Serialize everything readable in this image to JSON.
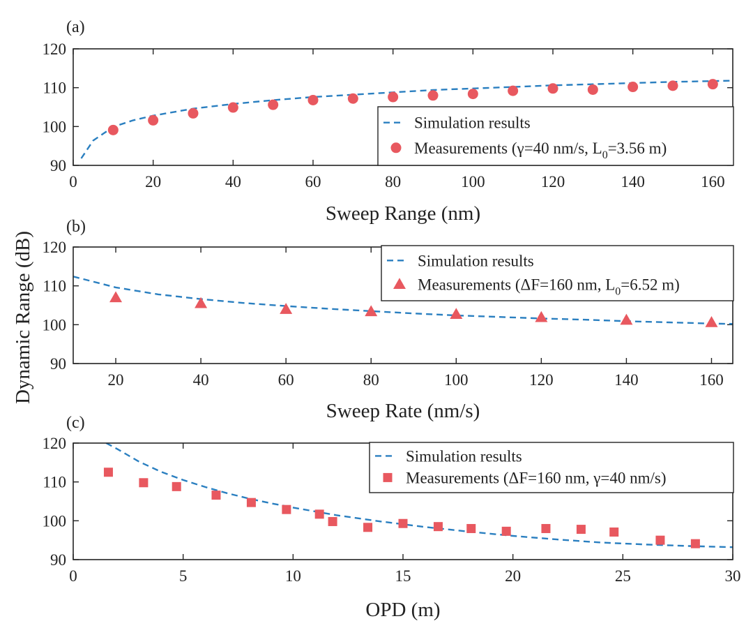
{
  "figure": {
    "shared_ylabel": "Dynamic Range (dB)",
    "colors": {
      "simulation": "#2a7fc0",
      "measurement": "#e8585f"
    }
  },
  "chart_data": [
    {
      "type": "scatter",
      "panel_label": "(a)",
      "xlabel": "Sweep Range (nm)",
      "ylabel": "Dynamic Range (dB)",
      "xlim": [
        0,
        165
      ],
      "ylim": [
        90,
        120
      ],
      "xticks": [
        0,
        20,
        40,
        60,
        80,
        100,
        120,
        140,
        160
      ],
      "yticks": [
        90,
        100,
        110,
        120
      ],
      "legend_position": "lower-right",
      "series": [
        {
          "name": "Simulation results",
          "style": "dashed-line",
          "x": [
            2,
            5,
            10,
            15,
            20,
            30,
            40,
            50,
            60,
            70,
            80,
            90,
            100,
            110,
            120,
            130,
            140,
            150,
            160,
            165
          ],
          "y": [
            91.8,
            96.4,
            99.9,
            101.6,
            102.8,
            104.6,
            105.8,
            106.8,
            107.6,
            108.2,
            108.8,
            109.4,
            109.8,
            110.2,
            110.6,
            110.9,
            111.2,
            111.5,
            111.7,
            111.8
          ]
        },
        {
          "name": "Measurements (γ=40 nm/s, L",
          "name_subscript": "0",
          "name_suffix": "=3.56 m)",
          "style": "circle",
          "x": [
            10,
            20,
            30,
            40,
            50,
            60,
            70,
            80,
            90,
            100,
            110,
            120,
            130,
            140,
            150,
            160
          ],
          "y": [
            99.1,
            101.6,
            103.4,
            104.9,
            105.6,
            106.8,
            107.2,
            107.6,
            108.0,
            108.4,
            109.2,
            109.8,
            109.5,
            110.2,
            110.5,
            110.9
          ]
        }
      ]
    },
    {
      "type": "scatter",
      "panel_label": "(b)",
      "xlabel": "Sweep Rate (nm/s)",
      "ylabel": "Dynamic Range (dB)",
      "xlim": [
        10,
        165
      ],
      "ylim": [
        90,
        120
      ],
      "xticks": [
        20,
        40,
        60,
        80,
        100,
        120,
        140,
        160
      ],
      "yticks": [
        90,
        100,
        110,
        120
      ],
      "legend_position": "upper-right",
      "series": [
        {
          "name": "Simulation results",
          "style": "dashed-line",
          "x": [
            10,
            20,
            30,
            40,
            50,
            60,
            70,
            80,
            90,
            100,
            110,
            120,
            130,
            140,
            150,
            160,
            165
          ],
          "y": [
            112.4,
            109.6,
            107.8,
            106.6,
            105.6,
            104.8,
            104.1,
            103.5,
            102.9,
            102.4,
            102.0,
            101.6,
            101.3,
            100.9,
            100.6,
            100.3,
            100.2
          ]
        },
        {
          "name": "Measurements (ΔF=160 nm, L",
          "name_subscript": "0",
          "name_suffix": "=6.52 m)",
          "style": "triangle",
          "x": [
            20,
            40,
            60,
            80,
            100,
            120,
            140,
            160
          ],
          "y": [
            107.0,
            105.5,
            104.0,
            103.4,
            102.7,
            101.9,
            101.2,
            100.6
          ]
        }
      ]
    },
    {
      "type": "scatter",
      "panel_label": "(c)",
      "xlabel": "OPD (m)",
      "ylabel": "Dynamic Range (dB)",
      "xlim": [
        0,
        30
      ],
      "ylim": [
        90,
        120
      ],
      "xticks": [
        0,
        5,
        10,
        15,
        20,
        25,
        30
      ],
      "yticks": [
        90,
        100,
        110,
        120
      ],
      "legend_position": "upper-right",
      "series": [
        {
          "name": "Simulation results",
          "style": "dashed-line",
          "x": [
            1.5,
            2,
            3,
            4,
            5,
            6,
            7,
            8,
            9,
            10,
            12,
            14,
            16,
            18,
            20,
            22,
            24,
            26,
            28,
            30
          ],
          "y": [
            120.0,
            118.5,
            115.2,
            112.6,
            110.5,
            108.7,
            107.1,
            105.7,
            104.5,
            103.4,
            101.4,
            99.8,
            98.4,
            97.2,
            96.1,
            95.2,
            94.4,
            93.9,
            93.5,
            93.2
          ]
        },
        {
          "name": "Measurements (ΔF=160 nm, γ=40 nm/s)",
          "style": "square",
          "x": [
            1.6,
            3.2,
            4.7,
            6.5,
            8.1,
            9.7,
            11.2,
            11.8,
            13.4,
            15.0,
            16.6,
            18.1,
            19.7,
            21.5,
            23.1,
            24.6,
            26.7,
            28.3
          ],
          "y": [
            112.5,
            109.8,
            108.8,
            106.6,
            104.7,
            102.9,
            101.7,
            99.8,
            98.3,
            99.3,
            98.5,
            98.0,
            97.3,
            98.0,
            97.8,
            97.1,
            95.0,
            94.1
          ]
        }
      ]
    }
  ]
}
